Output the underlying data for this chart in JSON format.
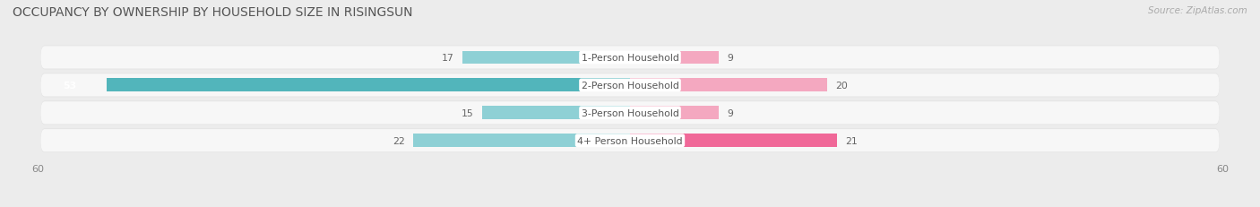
{
  "title": "OCCUPANCY BY OWNERSHIP BY HOUSEHOLD SIZE IN RISINGSUN",
  "source": "Source: ZipAtlas.com",
  "categories": [
    "1-Person Household",
    "2-Person Household",
    "3-Person Household",
    "4+ Person Household"
  ],
  "owner_values": [
    17,
    53,
    15,
    22
  ],
  "renter_values": [
    9,
    20,
    9,
    21
  ],
  "owner_color_dark": "#52b5bb",
  "owner_color_light": "#8ed0d5",
  "renter_color_dark": "#f06898",
  "renter_color_light": "#f4a8c0",
  "axis_max": 60,
  "bg_color": "#ececec",
  "row_bg_color": "#f7f7f7",
  "row_bg_shadow": "#e0e0e0",
  "title_fontsize": 10,
  "label_fontsize": 7.8,
  "value_fontsize": 7.8,
  "tick_fontsize": 8
}
